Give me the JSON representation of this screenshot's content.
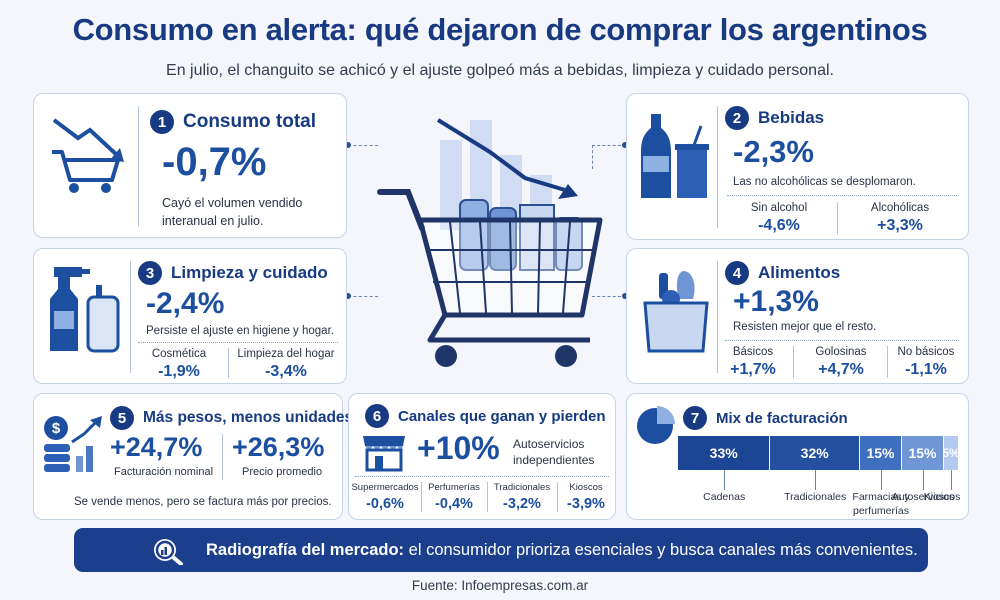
{
  "title": "Consumo en alerta: qué dejaron de comprar los argentinos",
  "subtitle": "En julio, el changuito se achicó y el ajuste golpeó más a bebidas, limpieza y cuidado personal.",
  "cards": {
    "consumo": {
      "num": "1",
      "title": "Consumo total",
      "value": "-0,7%",
      "desc_line1": "Cayó el volumen vendido",
      "desc_line2": "interanual en julio."
    },
    "bebidas": {
      "num": "2",
      "title": "Bebidas",
      "value": "-2,3%",
      "desc": "Las no alcohólicas se desplomaron.",
      "subs": [
        {
          "label": "Sin alcohol",
          "value": "-4,6%"
        },
        {
          "label": "Alcohólicas",
          "value": "+3,3%"
        }
      ]
    },
    "limpieza": {
      "num": "3",
      "title": "Limpieza y cuidado",
      "value": "-2,4%",
      "desc": "Persiste el ajuste en higiene y hogar.",
      "subs": [
        {
          "label": "Cosmética",
          "value": "-1,9%"
        },
        {
          "label": "Limpieza del hogar",
          "value": "-3,4%"
        }
      ]
    },
    "alimentos": {
      "num": "4",
      "title": "Alimentos",
      "value": "+1,3%",
      "desc": "Resisten mejor que el resto.",
      "subs": [
        {
          "label": "Básicos",
          "value": "+1,7%"
        },
        {
          "label": "Golosinas",
          "value": "+4,7%"
        },
        {
          "label": "No básicos",
          "value": "-1,1%"
        }
      ]
    },
    "pesos": {
      "num": "5",
      "title": "Más pesos, menos unidades",
      "v1": "+24,7%",
      "l1": "Facturación nominal",
      "v2": "+26,3%",
      "l2": "Precio promedio",
      "desc": "Se vende menos, pero se factura más por precios."
    },
    "canales": {
      "num": "6",
      "title": "Canales que ganan y pierden",
      "value": "+10%",
      "desc_line1": "Autoservicios",
      "desc_line2": "independientes",
      "subs": [
        {
          "label": "Supermercados",
          "value": "-0,6%"
        },
        {
          "label": "Perfumerías",
          "value": "-0,4%"
        },
        {
          "label": "Tradicionales",
          "value": "-3,2%"
        },
        {
          "label": "Kioscos",
          "value": "-3,9%"
        }
      ]
    },
    "mix": {
      "num": "7",
      "title": "Mix de facturación"
    }
  },
  "chart_data": {
    "type": "bar",
    "title": "Mix de facturación",
    "orientation": "stacked-horizontal",
    "categories": [
      "Cadenas",
      "Tradicionales",
      "Farmacias y perfumerías",
      "Autoservicios",
      "Kioscos"
    ],
    "values": [
      33,
      32,
      15,
      15,
      5
    ],
    "value_labels": [
      "33%",
      "32%",
      "15%",
      "15%",
      "5%"
    ],
    "colors": [
      "#1d4596",
      "#24509f",
      "#3f6fbf",
      "#6f97d6",
      "#b3c9ee"
    ]
  },
  "banner": {
    "bold": "Radiografía del mercado:",
    "text": " el consumidor prioriza esenciales y busca canales más convenientes."
  },
  "source": "Fuente: Infoempresas.com.ar"
}
